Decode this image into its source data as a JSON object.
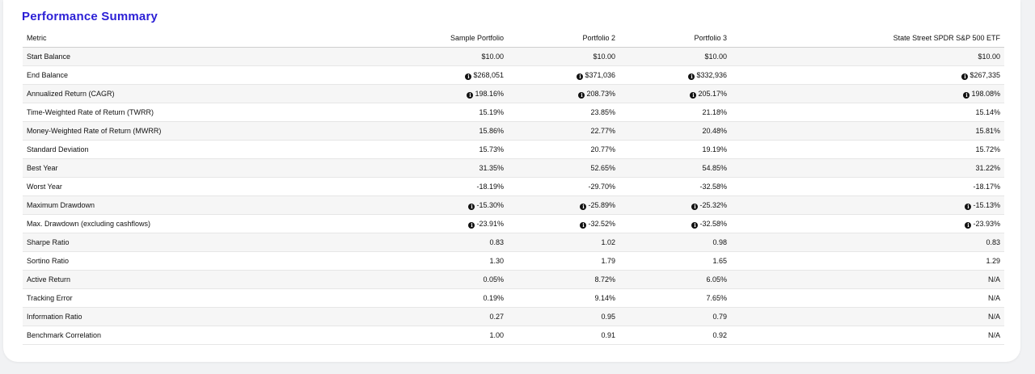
{
  "title": "Performance Summary",
  "columns": [
    "Metric",
    "Sample Portfolio",
    "Portfolio 2",
    "Portfolio 3",
    "State Street SPDR S&P 500 ETF"
  ],
  "icons": {
    "info": "info-icon"
  },
  "rows": [
    {
      "metric": "Start Balance",
      "info": false,
      "values": [
        "$10.00",
        "$10.00",
        "$10.00",
        "$10.00"
      ]
    },
    {
      "metric": "End Balance",
      "info": true,
      "values": [
        "$268,051",
        "$371,036",
        "$332,936",
        "$267,335"
      ]
    },
    {
      "metric": "Annualized Return (CAGR)",
      "info": true,
      "values": [
        "198.16%",
        "208.73%",
        "205.17%",
        "198.08%"
      ]
    },
    {
      "metric": "Time-Weighted Rate of Return (TWRR)",
      "info": false,
      "values": [
        "15.19%",
        "23.85%",
        "21.18%",
        "15.14%"
      ]
    },
    {
      "metric": "Money-Weighted Rate of Return (MWRR)",
      "info": false,
      "values": [
        "15.86%",
        "22.77%",
        "20.48%",
        "15.81%"
      ]
    },
    {
      "metric": "Standard Deviation",
      "info": false,
      "values": [
        "15.73%",
        "20.77%",
        "19.19%",
        "15.72%"
      ]
    },
    {
      "metric": "Best Year",
      "info": false,
      "values": [
        "31.35%",
        "52.65%",
        "54.85%",
        "31.22%"
      ]
    },
    {
      "metric": "Worst Year",
      "info": false,
      "values": [
        "-18.19%",
        "-29.70%",
        "-32.58%",
        "-18.17%"
      ]
    },
    {
      "metric": "Maximum Drawdown",
      "info": true,
      "values": [
        "-15.30%",
        "-25.89%",
        "-25.32%",
        "-15.13%"
      ]
    },
    {
      "metric": "Max. Drawdown (excluding cashflows)",
      "info": true,
      "values": [
        "-23.91%",
        "-32.52%",
        "-32.58%",
        "-23.93%"
      ]
    },
    {
      "metric": "Sharpe Ratio",
      "info": false,
      "values": [
        "0.83",
        "1.02",
        "0.98",
        "0.83"
      ]
    },
    {
      "metric": "Sortino Ratio",
      "info": false,
      "values": [
        "1.30",
        "1.79",
        "1.65",
        "1.29"
      ]
    },
    {
      "metric": "Active Return",
      "info": false,
      "values": [
        "0.05%",
        "8.72%",
        "6.05%",
        "N/A"
      ]
    },
    {
      "metric": "Tracking Error",
      "info": false,
      "values": [
        "0.19%",
        "9.14%",
        "7.65%",
        "N/A"
      ]
    },
    {
      "metric": "Information Ratio",
      "info": false,
      "values": [
        "0.27",
        "0.95",
        "0.79",
        "N/A"
      ]
    },
    {
      "metric": "Benchmark Correlation",
      "info": false,
      "values": [
        "1.00",
        "0.91",
        "0.92",
        "N/A"
      ]
    }
  ]
}
